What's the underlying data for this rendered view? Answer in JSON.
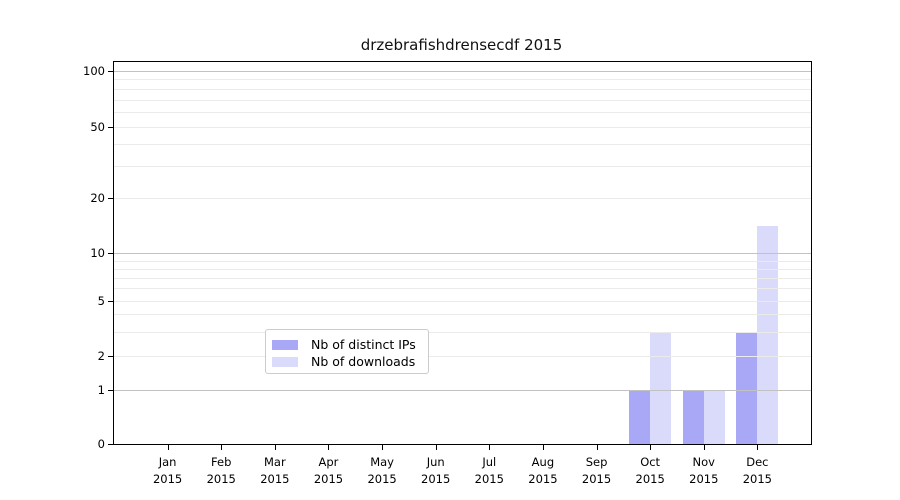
{
  "chart_data": {
    "type": "bar",
    "title": "drzebrafishdrensecdf 2015",
    "categories": [
      "Jan",
      "Feb",
      "Mar",
      "Apr",
      "May",
      "Jun",
      "Jul",
      "Aug",
      "Sep",
      "Oct",
      "Nov",
      "Dec"
    ],
    "x_year_label": "2015",
    "series": [
      {
        "name": "Nb of distinct IPs",
        "color": "#a8a8f7",
        "values": [
          0,
          0,
          0,
          0,
          0,
          0,
          0,
          0,
          0,
          1,
          1,
          3
        ]
      },
      {
        "name": "Nb of downloads",
        "color": "#dadafa",
        "values": [
          0,
          0,
          0,
          0,
          0,
          0,
          0,
          0,
          0,
          3,
          1,
          14
        ]
      }
    ],
    "y_axis": {
      "scale": "log-like (0 baseline, then log between labeled ticks)",
      "major_ticks": [
        0,
        1,
        2,
        5,
        10,
        20,
        50,
        100
      ],
      "minor_gridlines": [
        3,
        4,
        6,
        7,
        8,
        9,
        30,
        40,
        60,
        70,
        80,
        90
      ],
      "emphasized_gridlines": [
        1,
        10,
        100
      ],
      "ylim": [
        0,
        100
      ],
      "grid": true
    },
    "legend": {
      "position": "inside-bottom-center",
      "entries": [
        "Nb of distinct IPs",
        "Nb of downloads"
      ]
    }
  }
}
